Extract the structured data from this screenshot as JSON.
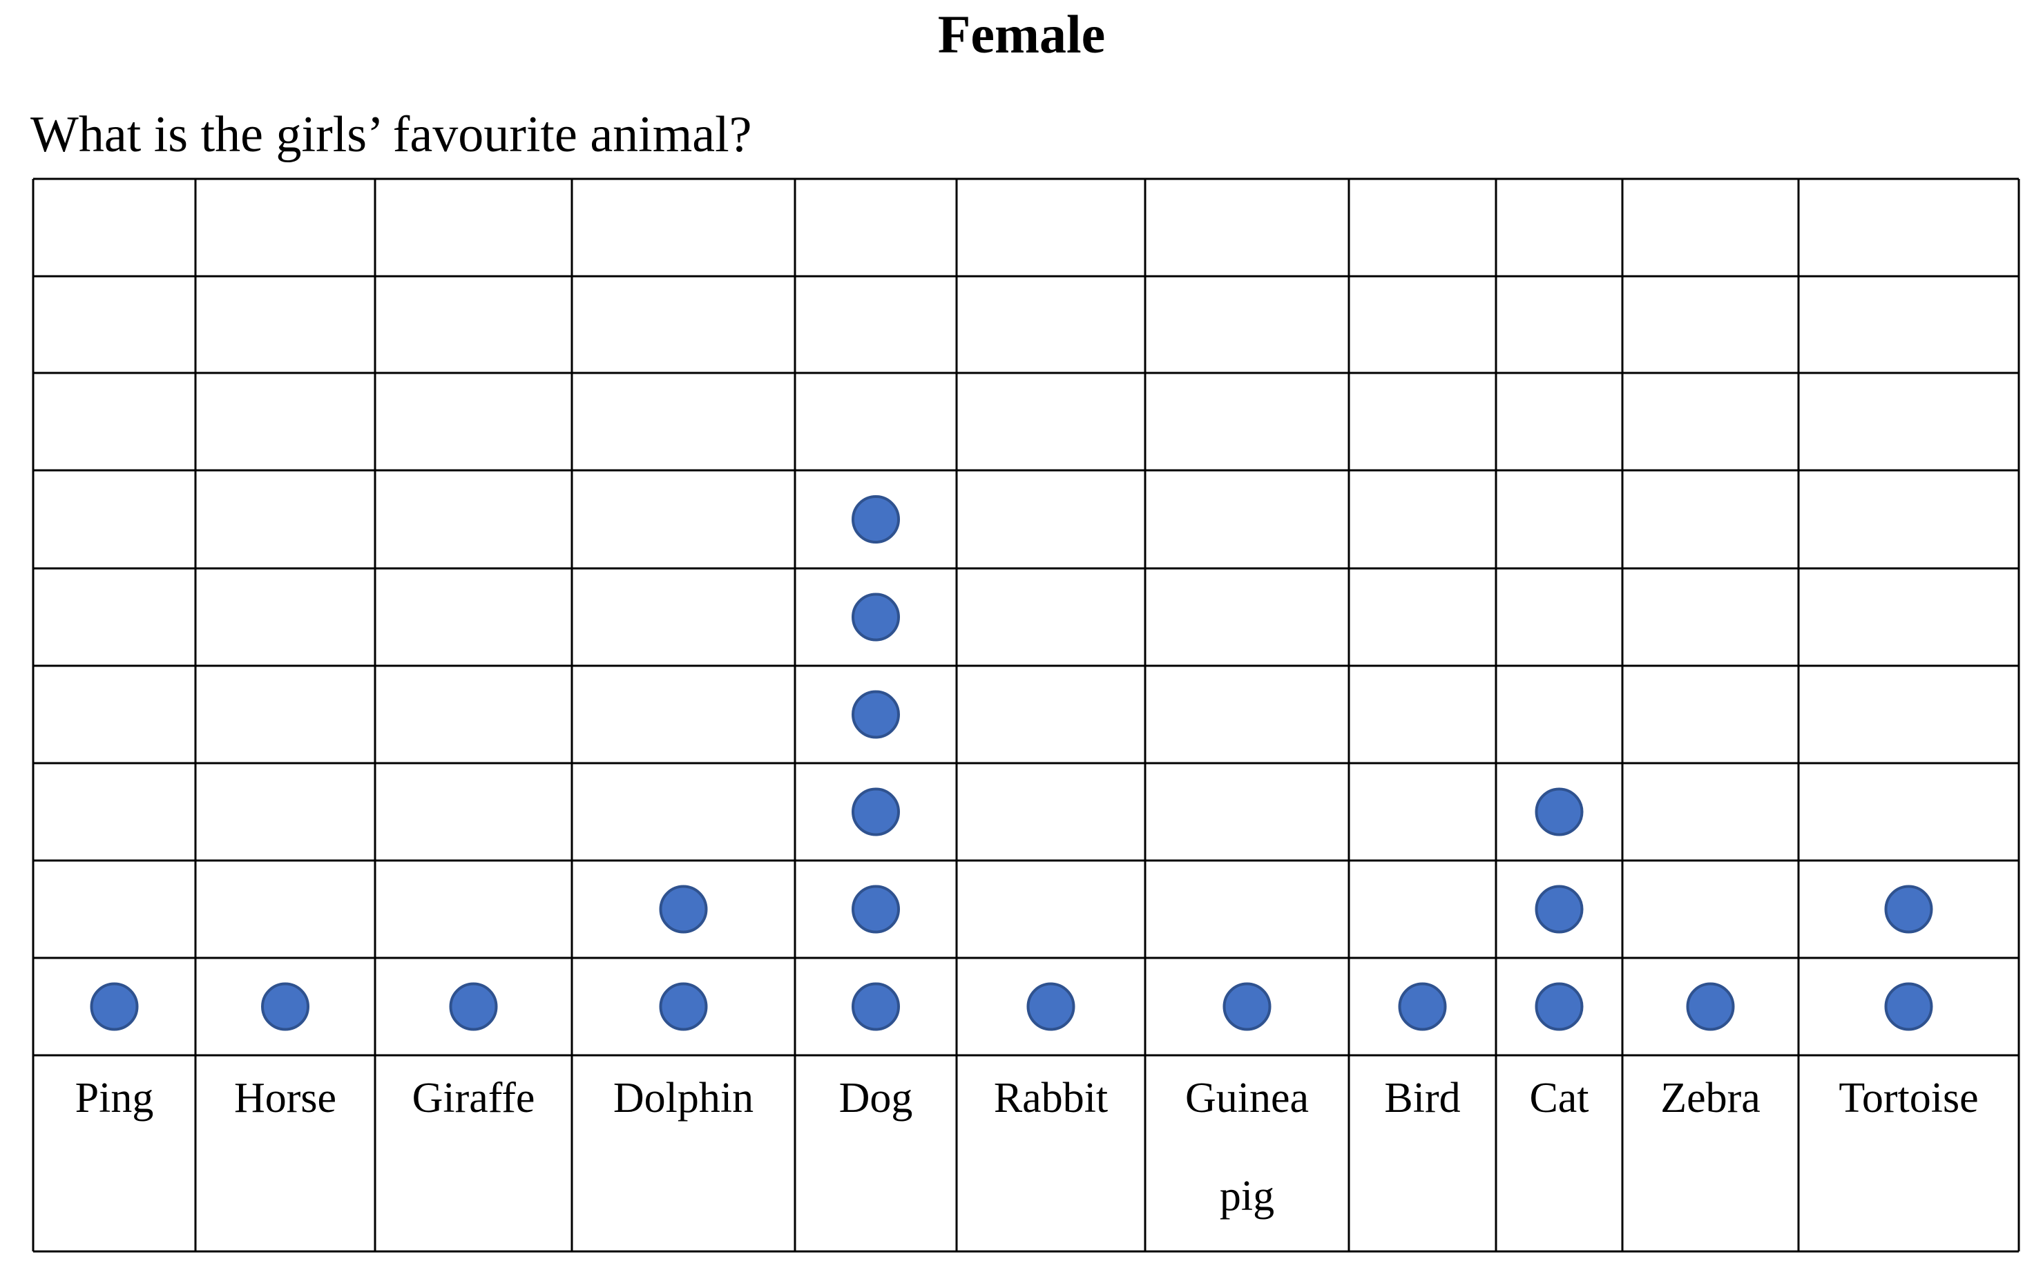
{
  "chart_data": {
    "type": "dot_plot",
    "title": "Female",
    "subtitle": "What is the girls’ favourite animal?",
    "categories": [
      "Ping",
      "Horse",
      "Giraffe",
      "Dolphin",
      "Dog",
      "Rabbit",
      "Guinea pig",
      "Bird",
      "Cat",
      "Zebra",
      "Tortoise"
    ],
    "category_label_lines": [
      [
        "Ping"
      ],
      [
        "Horse"
      ],
      [
        "Giraffe"
      ],
      [
        "Dolphin"
      ],
      [
        "Dog"
      ],
      [
        "Rabbit"
      ],
      [
        "Guinea",
        "pig"
      ],
      [
        "Bird"
      ],
      [
        "Cat"
      ],
      [
        "Zebra"
      ],
      [
        "Tortoise"
      ]
    ],
    "values": [
      1,
      1,
      1,
      2,
      6,
      1,
      1,
      1,
      3,
      1,
      2
    ],
    "ylim": [
      0,
      9
    ],
    "grid": true,
    "dot_color": "#4472C4",
    "dot_stroke": "#2F528F"
  }
}
